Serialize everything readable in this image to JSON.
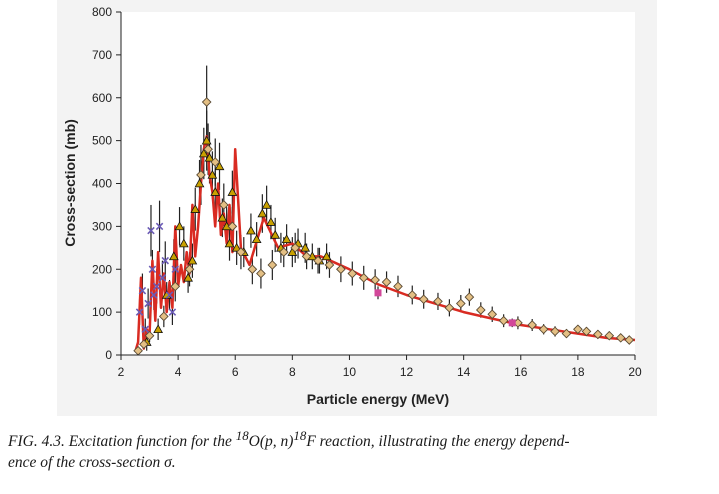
{
  "caption": {
    "prefix": "FIG. 4.3.  Excitation function for the ",
    "sup1": "18",
    "middle": "O(p, n)",
    "sup2": "18",
    "suffix": "F reaction, illustrating the energy depend-",
    "line2": "ence of the cross-section σ."
  },
  "chart_data": {
    "type": "scatter",
    "title": "",
    "xlabel": "Particle energy (MeV)",
    "ylabel": "Cross-section (mb)",
    "xlim": [
      2,
      20
    ],
    "ylim": [
      0,
      800
    ],
    "xticks": [
      2,
      4,
      6,
      8,
      10,
      12,
      14,
      16,
      18,
      20
    ],
    "yticks": [
      0,
      100,
      200,
      300,
      400,
      500,
      600,
      700,
      800
    ],
    "grid": false,
    "legend": "none",
    "colors": {
      "fit_line": "#d92b22",
      "triangle_fill": "#c9a100",
      "diamond_fill": "#e3bf84",
      "cross_points": "#6b5bb5",
      "magenta_points": "#d2479a",
      "errorbar": "#222222",
      "panel": "#f3f3f3",
      "plot_area": "#ffffff"
    },
    "series": [
      {
        "marker": "fit-line",
        "x": [
          2.5,
          2.6,
          2.7,
          2.8,
          2.9,
          3.0,
          3.1,
          3.2,
          3.3,
          3.4,
          3.5,
          3.6,
          3.7,
          3.8,
          3.9,
          4.0,
          4.1,
          4.2,
          4.3,
          4.4,
          4.5,
          4.6,
          4.7,
          4.8,
          4.9,
          5.0,
          5.1,
          5.2,
          5.3,
          5.4,
          5.5,
          5.6,
          5.7,
          5.8,
          5.9,
          6.0,
          6.2,
          6.5,
          7.0,
          7.5,
          8.0,
          8.5,
          9.0,
          9.5,
          10.0,
          11.0,
          12.0,
          13.0,
          14.0,
          15.0,
          16.0,
          17.0,
          18.0,
          19.0,
          20.0
        ],
        "y": [
          8,
          30,
          180,
          15,
          60,
          50,
          220,
          80,
          240,
          110,
          190,
          100,
          170,
          110,
          300,
          160,
          210,
          170,
          240,
          190,
          350,
          230,
          300,
          400,
          480,
          510,
          420,
          380,
          300,
          400,
          280,
          330,
          260,
          350,
          240,
          480,
          250,
          210,
          320,
          250,
          260,
          230,
          230,
          215,
          200,
          165,
          140,
          120,
          100,
          85,
          70,
          60,
          50,
          40,
          35
        ]
      },
      {
        "marker": "triangle",
        "x": [
          2.9,
          3.3,
          3.6,
          3.85,
          4.05,
          4.2,
          4.35,
          4.5,
          4.6,
          4.75,
          4.9,
          5.0,
          5.1,
          5.2,
          5.3,
          5.45,
          5.55,
          5.7,
          5.8,
          5.9,
          6.05,
          6.3,
          6.55,
          6.75,
          6.95,
          7.1,
          7.25,
          7.4,
          7.6,
          7.8,
          8.0,
          8.2,
          8.45,
          8.7,
          8.95,
          9.2
        ],
        "y": [
          30,
          60,
          140,
          230,
          300,
          260,
          180,
          220,
          340,
          400,
          470,
          500,
          460,
          420,
          380,
          440,
          320,
          300,
          260,
          380,
          250,
          240,
          290,
          270,
          330,
          350,
          310,
          280,
          250,
          270,
          240,
          260,
          250,
          230,
          220,
          230
        ],
        "yerr": [
          20,
          25,
          30,
          40,
          45,
          40,
          35,
          40,
          50,
          55,
          60,
          70,
          60,
          55,
          50,
          55,
          45,
          45,
          40,
          50,
          40,
          35,
          40,
          40,
          45,
          45,
          40,
          40,
          35,
          35,
          35,
          35,
          35,
          30,
          30,
          30
        ]
      },
      {
        "marker": "diamond",
        "x": [
          2.6,
          2.8,
          3.0,
          3.5,
          3.9,
          4.4,
          4.8,
          5.0,
          5.05,
          5.3,
          5.6,
          5.9,
          6.2,
          6.6,
          6.9,
          7.3,
          7.7,
          8.1,
          8.5,
          8.9,
          9.3,
          9.7,
          10.1,
          10.5,
          10.9,
          11.3,
          11.7,
          12.2,
          12.6,
          13.1,
          13.5,
          13.9,
          14.2,
          14.6,
          15.0,
          15.4,
          15.9,
          16.4,
          16.8,
          17.2,
          17.6,
          18.0,
          18.3,
          18.7,
          19.1,
          19.5,
          19.8
        ],
        "y": [
          10,
          25,
          45,
          90,
          160,
          200,
          420,
          590,
          480,
          450,
          350,
          300,
          240,
          200,
          190,
          210,
          240,
          250,
          230,
          220,
          210,
          200,
          190,
          180,
          175,
          170,
          160,
          140,
          130,
          125,
          110,
          120,
          135,
          105,
          95,
          80,
          75,
          70,
          60,
          55,
          50,
          60,
          55,
          48,
          45,
          40,
          35
        ],
        "yerr": [
          8,
          12,
          15,
          25,
          35,
          40,
          70,
          85,
          60,
          55,
          50,
          45,
          40,
          35,
          35,
          35,
          35,
          35,
          30,
          30,
          30,
          30,
          28,
          28,
          25,
          25,
          25,
          22,
          22,
          20,
          20,
          20,
          20,
          18,
          18,
          15,
          15,
          14,
          12,
          12,
          10,
          10,
          10,
          10,
          10,
          8,
          8
        ]
      },
      {
        "marker": "cross",
        "x": [
          2.65,
          2.75,
          2.85,
          2.95,
          3.05,
          3.1,
          3.15,
          3.25,
          3.35,
          3.45,
          3.55,
          3.7,
          3.8,
          3.9
        ],
        "y": [
          100,
          150,
          60,
          120,
          290,
          200,
          140,
          160,
          300,
          180,
          220,
          140,
          100,
          200
        ],
        "yerr": [
          30,
          40,
          25,
          35,
          60,
          45,
          35,
          40,
          60,
          40,
          45,
          35,
          30,
          40
        ]
      },
      {
        "marker": "magenta",
        "x": [
          11.0,
          15.7
        ],
        "y": [
          145,
          75
        ],
        "yerr": [
          15,
          10
        ]
      }
    ]
  }
}
